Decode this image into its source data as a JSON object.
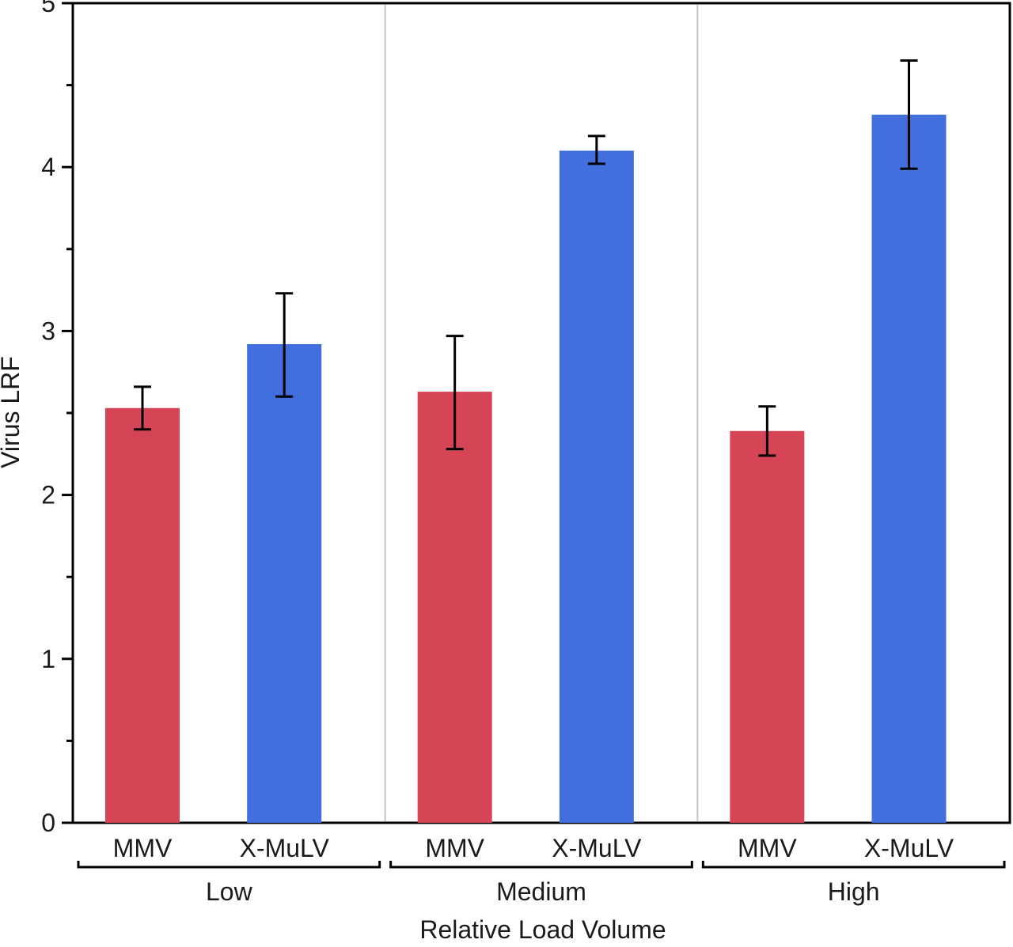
{
  "chart_data": {
    "type": "bar",
    "title": "",
    "xlabel": "Relative Load Volume",
    "ylabel": "Virus LRF",
    "ylim": [
      0,
      5
    ],
    "yticks": [
      "0",
      "1",
      "2",
      "3",
      "4",
      "5"
    ],
    "grid": false,
    "groups": [
      {
        "label": "Low",
        "bars": [
          {
            "category": "MMV",
            "value": 2.53,
            "err_low": 2.4,
            "err_high": 2.66
          },
          {
            "category": "X-MuLV",
            "value": 2.92,
            "err_low": 2.6,
            "err_high": 3.23
          }
        ]
      },
      {
        "label": "Medium",
        "bars": [
          {
            "category": "MMV",
            "value": 2.63,
            "err_low": 2.28,
            "err_high": 2.97
          },
          {
            "category": "X-MuLV",
            "value": 4.1,
            "err_low": 4.02,
            "err_high": 4.19
          }
        ]
      },
      {
        "label": "High",
        "bars": [
          {
            "category": "MMV",
            "value": 2.39,
            "err_low": 2.24,
            "err_high": 2.54
          },
          {
            "category": "X-MuLV",
            "value": 4.32,
            "err_low": 3.99,
            "err_high": 4.65
          }
        ]
      }
    ],
    "colors": {
      "MMV": "#d64556",
      "X-MuLV": "#4170de"
    }
  }
}
